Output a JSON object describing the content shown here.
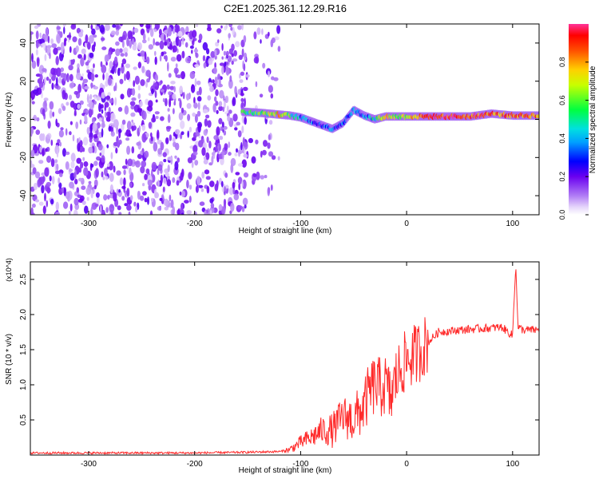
{
  "title": "C2E1.2025.361.12.29.R16",
  "chart_data": [
    {
      "type": "heatmap",
      "xlabel": "Height of straight line (km)",
      "ylabel": "Frequency (Hz)",
      "xlim": [
        -355,
        125
      ],
      "ylim": [
        -50,
        50
      ],
      "x_ticks": [
        -300,
        -200,
        -100,
        0,
        100
      ],
      "y_ticks": [
        -40,
        -20,
        0,
        20,
        40
      ],
      "colorbar": {
        "label": "Normalized spectral amplitude",
        "range": [
          0,
          1
        ],
        "ticks": [
          0.0,
          0.2,
          0.4,
          0.6,
          0.8
        ],
        "colors": [
          "#ffffff",
          "#dcc8f8",
          "#7a00f0",
          "#0000ff",
          "#00bfff",
          "#00ff40",
          "#ffff00",
          "#ff8000",
          "#ff0000",
          "#ff3399"
        ]
      },
      "noise_region_x": [
        -355,
        -150
      ],
      "ridge_trace": [
        {
          "x": -155,
          "f": 4.0,
          "a": 0.5
        },
        {
          "x": -140,
          "f": 3.5,
          "a": 0.55
        },
        {
          "x": -130,
          "f": 3.0,
          "a": 0.6
        },
        {
          "x": -120,
          "f": 2.5,
          "a": 0.75
        },
        {
          "x": -110,
          "f": 2.0,
          "a": 0.55
        },
        {
          "x": -100,
          "f": 1.0,
          "a": 0.4
        },
        {
          "x": -90,
          "f": -1.0,
          "a": 0.35
        },
        {
          "x": -80,
          "f": -3.0,
          "a": 0.3
        },
        {
          "x": -70,
          "f": -5.0,
          "a": 0.3
        },
        {
          "x": -60,
          "f": -2.0,
          "a": 0.35
        },
        {
          "x": -50,
          "f": 5.0,
          "a": 0.4
        },
        {
          "x": -40,
          "f": 2.0,
          "a": 0.35
        },
        {
          "x": -30,
          "f": 0.0,
          "a": 0.45
        },
        {
          "x": -20,
          "f": 1.5,
          "a": 0.8
        },
        {
          "x": -10,
          "f": 1.5,
          "a": 0.6
        },
        {
          "x": 0,
          "f": 1.5,
          "a": 0.7
        },
        {
          "x": 20,
          "f": 1.5,
          "a": 0.85
        },
        {
          "x": 40,
          "f": 1.5,
          "a": 0.9
        },
        {
          "x": 60,
          "f": 1.5,
          "a": 0.9
        },
        {
          "x": 80,
          "f": 3.0,
          "a": 0.85
        },
        {
          "x": 100,
          "f": 2.0,
          "a": 0.8
        },
        {
          "x": 125,
          "f": 2.0,
          "a": 0.8
        }
      ]
    },
    {
      "type": "line",
      "xlabel": "Height of straight line (km)",
      "ylabel": "SNR (10 * v/v)",
      "y_multiplier": "(x10^4)",
      "xlim": [
        -355,
        125
      ],
      "ylim": [
        0,
        27500
      ],
      "x_ticks": [
        -300,
        -200,
        -100,
        0,
        100
      ],
      "y_ticks": [
        5000,
        10000,
        15000,
        20000,
        25000
      ],
      "y_tick_labels": [
        "0.5",
        "1.0",
        "1.5",
        "2.0",
        "2.5"
      ],
      "color": "#ff2a2a",
      "series": [
        {
          "x": [
            -355,
            -300,
            -250,
            -200,
            -150,
            -120,
            -110,
            -100,
            -90,
            -80,
            -70,
            -60,
            -50,
            -40,
            -35,
            -30,
            -25,
            -20,
            -15,
            -10,
            -5,
            0,
            10,
            20,
            30,
            50,
            70,
            90,
            100,
            103,
            105,
            110,
            125
          ],
          "y": [
            300,
            300,
            300,
            300,
            400,
            500,
            800,
            1800,
            2500,
            3500,
            3500,
            5500,
            5000,
            7000,
            9000,
            10000,
            9500,
            10000,
            8000,
            11000,
            12500,
            13500,
            14500,
            16000,
            17500,
            17800,
            18000,
            18200,
            17000,
            27500,
            18200,
            17800,
            17800
          ]
        }
      ]
    }
  ]
}
